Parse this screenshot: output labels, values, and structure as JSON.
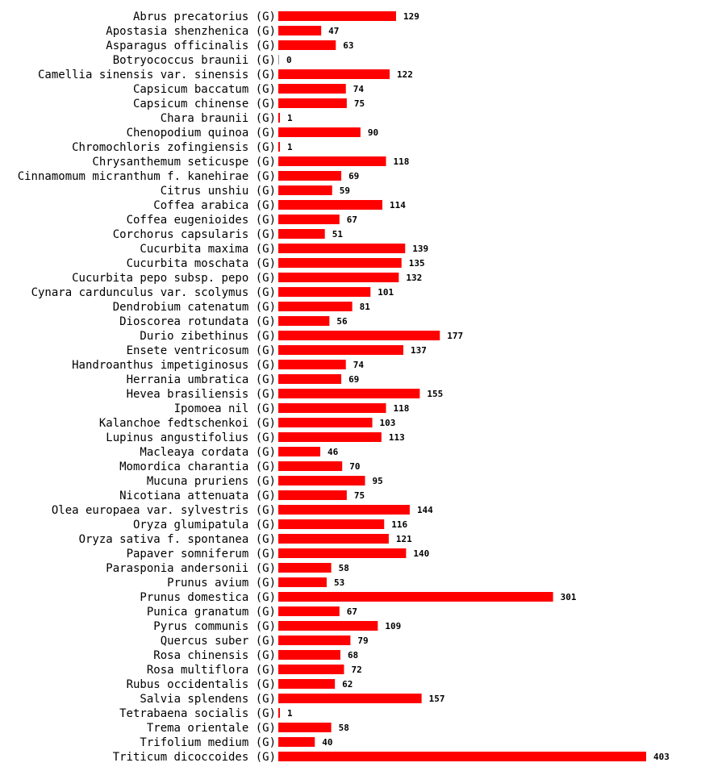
{
  "chart_data": {
    "type": "bar",
    "orientation": "horizontal",
    "title": "",
    "xlabel": "",
    "ylabel": "",
    "grid": false,
    "bar_color": "#ff0000",
    "xlim": [
      0,
      403
    ],
    "categories": [
      "Abrus precatorius (G)",
      "Apostasia shenzhenica (G)",
      "Asparagus officinalis (G)",
      "Botryococcus braunii (G)",
      "Camellia sinensis var. sinensis (G)",
      "Capsicum baccatum (G)",
      "Capsicum chinense (G)",
      "Chara braunii (G)",
      "Chenopodium quinoa (G)",
      "Chromochloris zofingiensis (G)",
      "Chrysanthemum seticuspe (G)",
      "Cinnamomum micranthum f. kanehirae (G)",
      "Citrus unshiu (G)",
      "Coffea arabica (G)",
      "Coffea eugenioides (G)",
      "Corchorus capsularis (G)",
      "Cucurbita maxima (G)",
      "Cucurbita moschata (G)",
      "Cucurbita pepo subsp. pepo (G)",
      "Cynara cardunculus var. scolymus (G)",
      "Dendrobium catenatum (G)",
      "Dioscorea rotundata (G)",
      "Durio zibethinus (G)",
      "Ensete ventricosum (G)",
      "Handroanthus impetiginosus (G)",
      "Herrania umbratica (G)",
      "Hevea brasiliensis (G)",
      "Ipomoea nil (G)",
      "Kalanchoe fedtschenkoi (G)",
      "Lupinus angustifolius (G)",
      "Macleaya cordata (G)",
      "Momordica charantia (G)",
      "Mucuna pruriens (G)",
      "Nicotiana attenuata (G)",
      "Olea europaea var. sylvestris (G)",
      "Oryza glumipatula (G)",
      "Oryza sativa f. spontanea (G)",
      "Papaver somniferum (G)",
      "Parasponia andersonii (G)",
      "Prunus avium (G)",
      "Prunus domestica (G)",
      "Punica granatum (G)",
      "Pyrus communis (G)",
      "Quercus suber (G)",
      "Rosa chinensis (G)",
      "Rosa multiflora (G)",
      "Rubus occidentalis (G)",
      "Salvia splendens (G)",
      "Tetrabaena socialis (G)",
      "Trema orientale (G)",
      "Trifolium medium (G)",
      "Triticum dicoccoides (G)"
    ],
    "values": [
      129,
      47,
      63,
      0,
      122,
      74,
      75,
      1,
      90,
      1,
      118,
      69,
      59,
      114,
      67,
      51,
      139,
      135,
      132,
      101,
      81,
      56,
      177,
      137,
      74,
      69,
      155,
      118,
      103,
      113,
      46,
      70,
      95,
      75,
      144,
      116,
      121,
      140,
      58,
      53,
      301,
      67,
      109,
      79,
      68,
      72,
      62,
      157,
      1,
      58,
      40,
      403
    ]
  }
}
